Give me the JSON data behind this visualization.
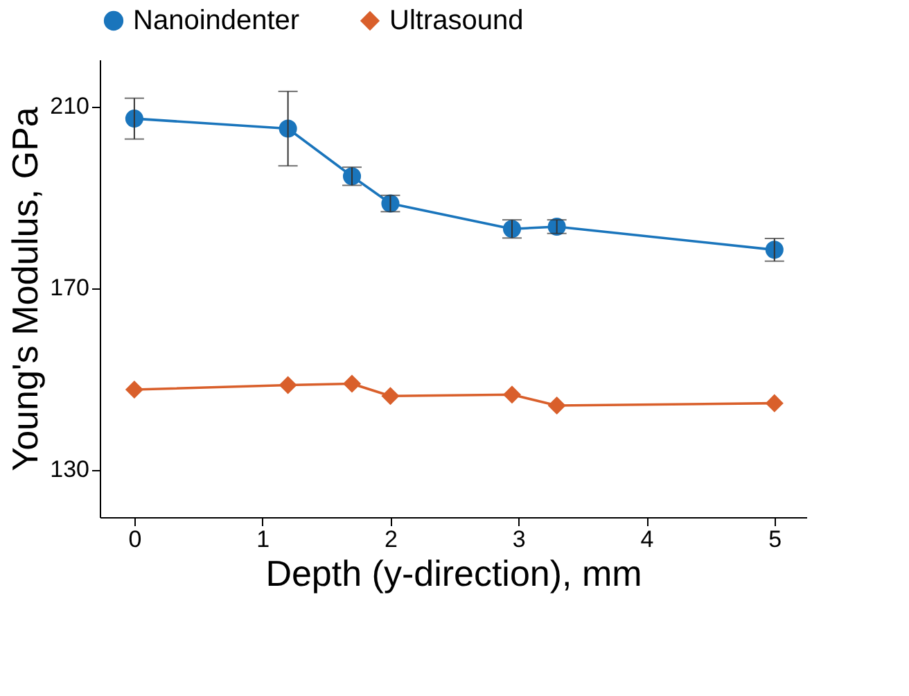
{
  "chart_data": {
    "type": "line",
    "xlabel": "Depth (y-direction), mm",
    "ylabel": "Young's Modulus, GPa",
    "xlim": [
      -0.27,
      5.25
    ],
    "xticks": [
      0,
      1,
      2,
      3,
      4,
      5
    ],
    "ylim": [
      119.5,
      220.3
    ],
    "yticks": [
      130,
      170,
      210
    ],
    "grid": false,
    "legend": "top",
    "series": [
      {
        "name": "Nanoindenter",
        "color": "#1a75bc",
        "marker": "circle",
        "x": [
          0,
          1.2,
          1.7,
          2.0,
          2.95,
          3.3,
          5.0
        ],
        "values": [
          207.3,
          205.1,
          194.6,
          188.6,
          183.0,
          183.5,
          178.4
        ],
        "errors": [
          4.5,
          8.2,
          2,
          1.8,
          2,
          1.5,
          2.5
        ]
      },
      {
        "name": "Ultrasound",
        "color": "#d95f2b",
        "marker": "diamond",
        "x": [
          0,
          1.2,
          1.7,
          2.0,
          2.95,
          3.3,
          5.0
        ],
        "values": [
          147.6,
          148.6,
          148.9,
          146.2,
          146.5,
          144.1,
          144.6
        ]
      }
    ]
  }
}
